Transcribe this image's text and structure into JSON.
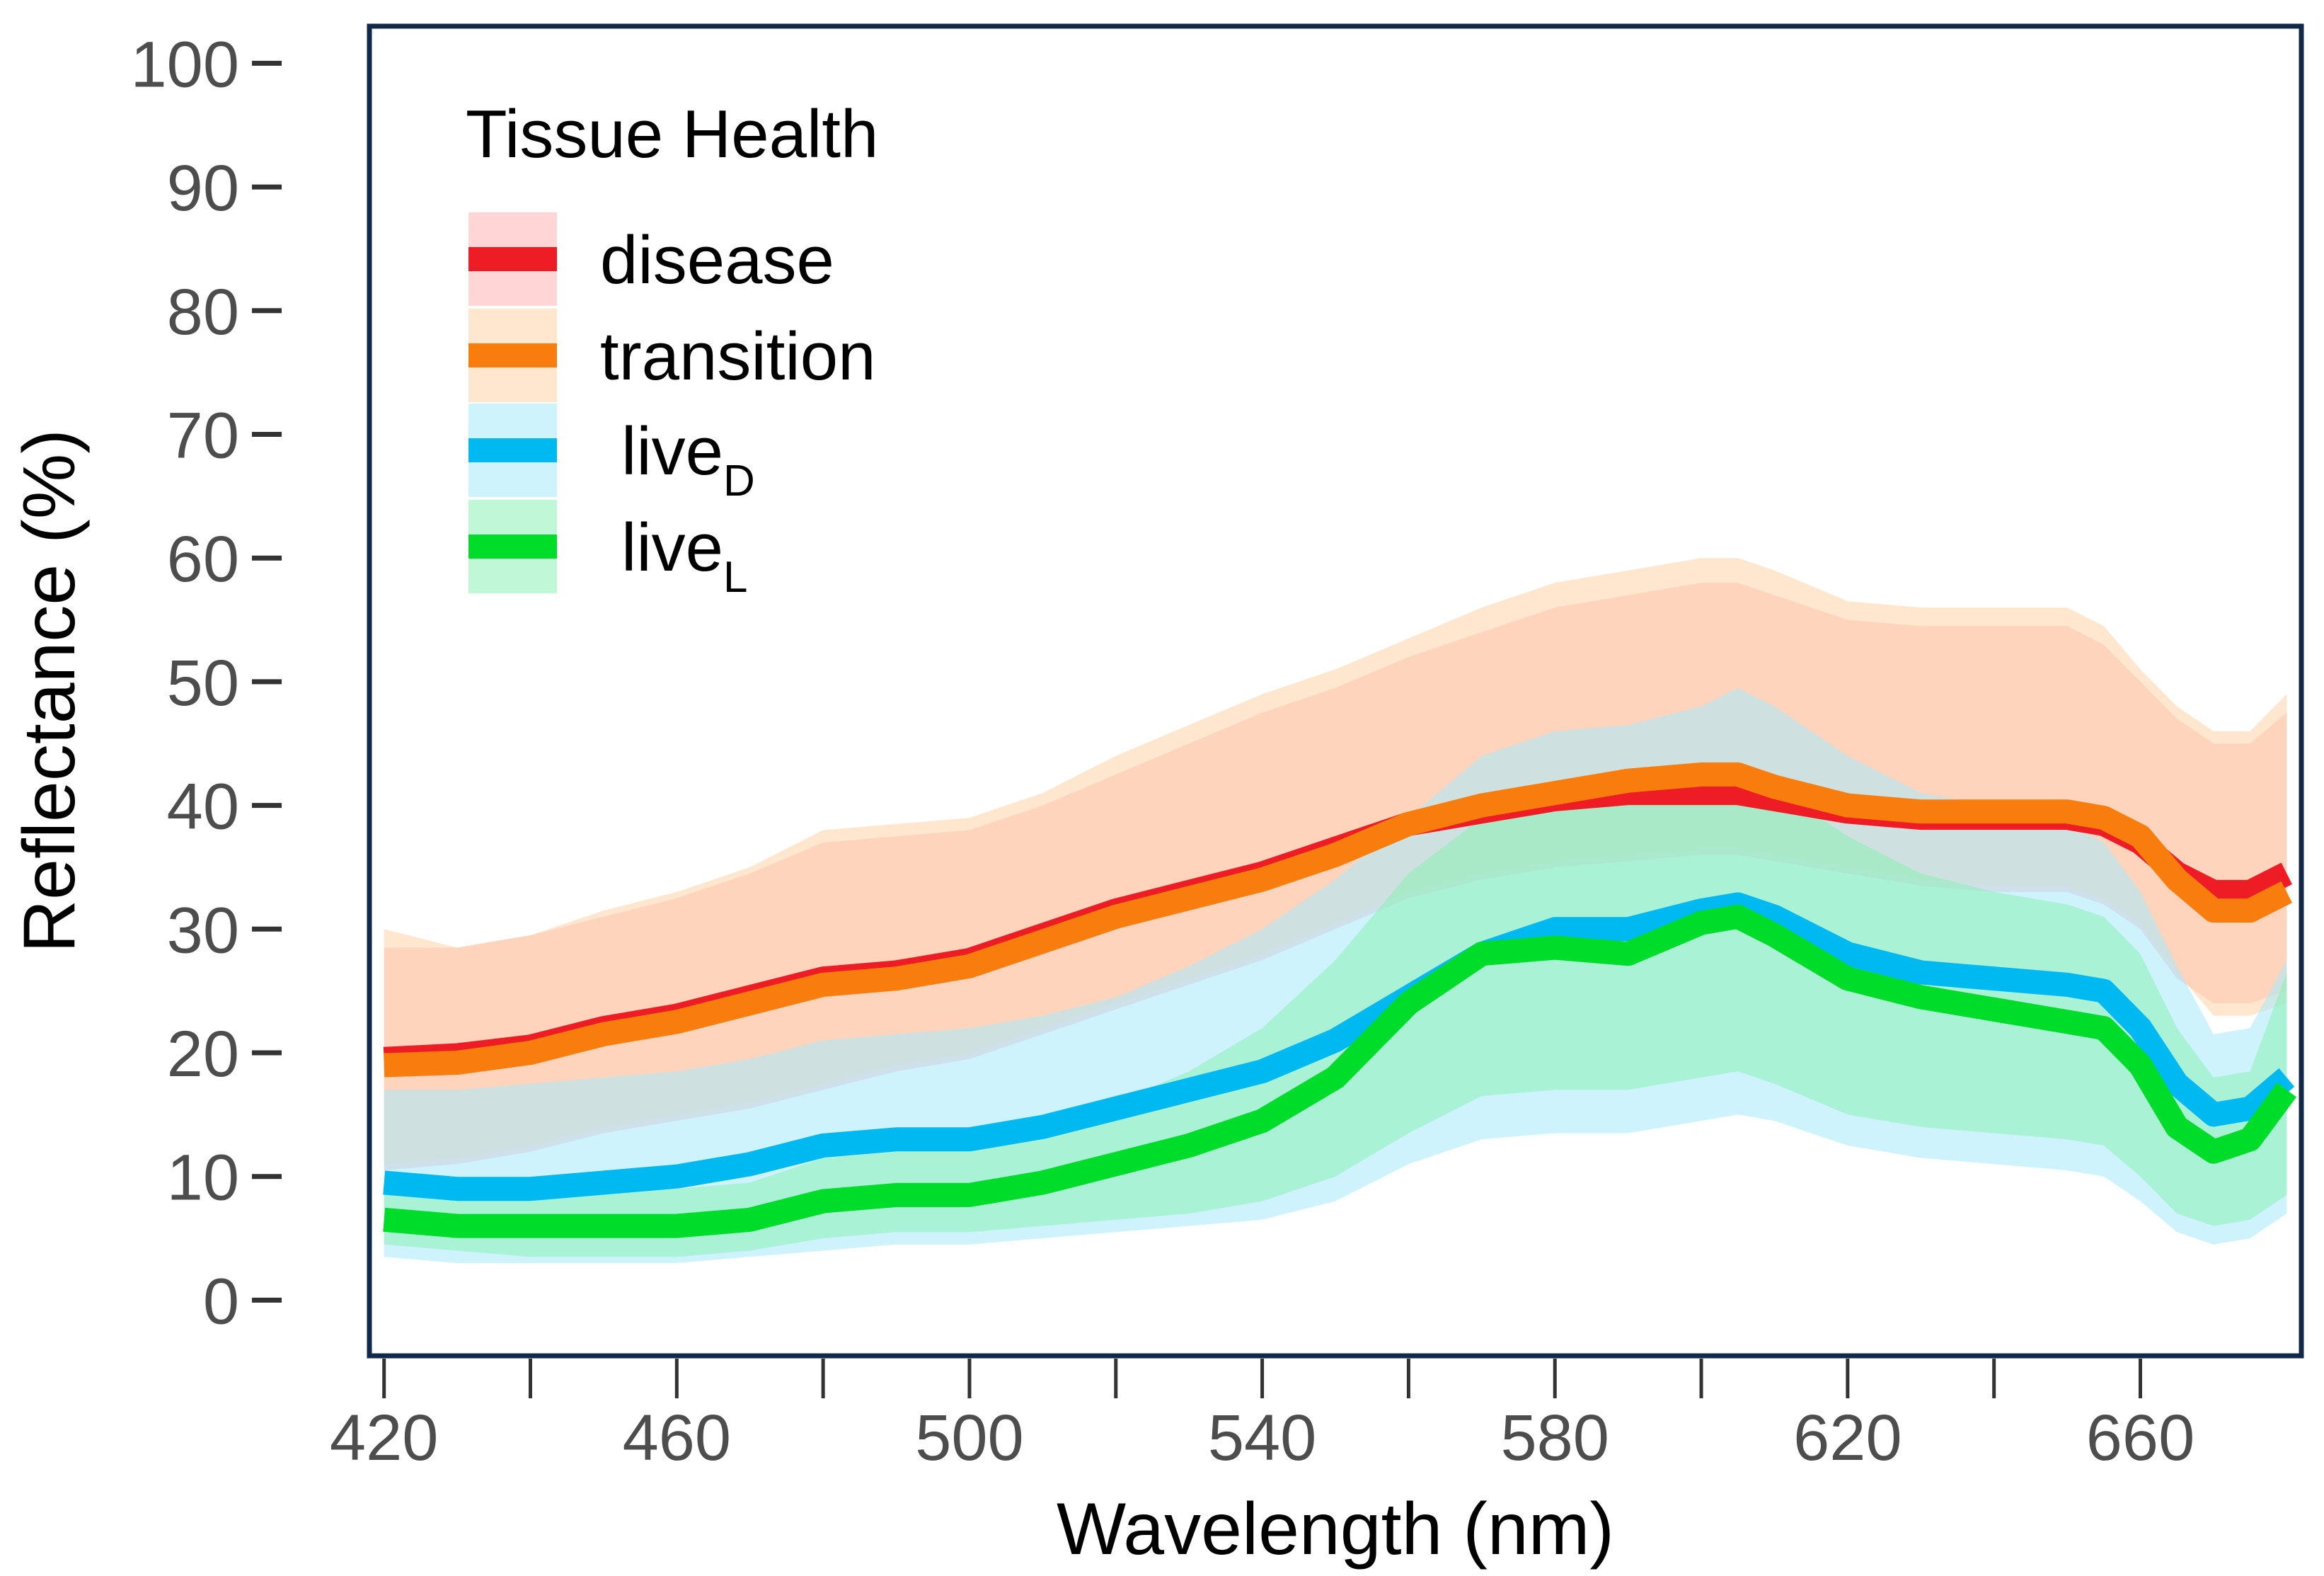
{
  "chart_data": {
    "type": "line",
    "xlabel": "Wavelength (nm)",
    "ylabel": "Reflectance (%)",
    "xlim": [
      418,
      682
    ],
    "ylim": [
      -4.5,
      103
    ],
    "x_ticks": [
      420,
      460,
      500,
      540,
      580,
      620,
      660
    ],
    "x_minor_ticks": [
      440,
      480,
      520,
      560,
      600,
      640
    ],
    "y_ticks": [
      0,
      10,
      20,
      30,
      40,
      50,
      60,
      70,
      80,
      90,
      100
    ],
    "grid": false,
    "legend": {
      "title": "Tissue Health",
      "position": "top-left",
      "entries": [
        {
          "key": "disease",
          "label": "disease",
          "sub": ""
        },
        {
          "key": "transition",
          "label": "transition",
          "sub": ""
        },
        {
          "key": "liveD",
          "label": "live",
          "sub": "D"
        },
        {
          "key": "liveL",
          "label": "live",
          "sub": "L"
        }
      ]
    },
    "series": [
      {
        "name": "disease",
        "color": "#ee1c25",
        "band_color": "#ffb3b3",
        "x": [
          420,
          430,
          440,
          450,
          460,
          470,
          480,
          490,
          500,
          510,
          520,
          530,
          540,
          550,
          560,
          570,
          580,
          590,
          600,
          605,
          610,
          620,
          630,
          640,
          650,
          655,
          660,
          665,
          670,
          675,
          680
        ],
        "y": [
          19.5,
          19.8,
          20.5,
          22,
          23,
          24.5,
          26,
          26.5,
          27.5,
          29.5,
          31.5,
          33,
          34.5,
          36.5,
          38.5,
          39.5,
          40.5,
          41,
          41,
          41,
          40.5,
          39.5,
          39,
          39,
          39,
          38.5,
          37,
          34.5,
          33,
          33,
          34.5
        ],
        "lower": [
          10.5,
          11,
          12,
          13.5,
          14.5,
          15.5,
          17,
          18.5,
          19.5,
          21.5,
          23.5,
          25.5,
          27.5,
          30,
          32.5,
          34,
          35,
          35.5,
          36,
          36,
          35.5,
          34.5,
          33.5,
          33,
          33,
          32,
          30,
          26,
          24,
          24,
          25
        ],
        "upper": [
          28.5,
          28.5,
          29.5,
          31,
          32.5,
          34.5,
          37,
          37.5,
          38,
          40,
          42.5,
          45,
          47.5,
          49.5,
          52,
          54,
          56,
          57,
          58,
          58,
          57,
          55,
          54.5,
          54.5,
          54.5,
          53,
          50,
          47,
          45,
          45,
          47.5
        ]
      },
      {
        "name": "transition",
        "color": "#f97d0c",
        "band_color": "#ffd3a8",
        "x": [
          420,
          430,
          440,
          450,
          460,
          470,
          480,
          490,
          500,
          510,
          520,
          530,
          540,
          550,
          560,
          570,
          580,
          590,
          600,
          605,
          610,
          620,
          630,
          640,
          650,
          655,
          660,
          665,
          670,
          675,
          680
        ],
        "y": [
          19,
          19.2,
          20,
          21.5,
          22.5,
          24,
          25.5,
          26,
          27,
          29,
          31,
          32.5,
          34,
          36,
          38.5,
          40,
          41,
          42,
          42.5,
          42.5,
          41.5,
          40,
          39.5,
          39.5,
          39.5,
          39,
          37.5,
          34,
          31.5,
          31.5,
          33
        ],
        "lower": [
          11,
          11.5,
          12.5,
          14,
          15,
          16,
          17.5,
          19,
          20,
          22,
          24,
          26,
          28,
          30.5,
          33,
          34.5,
          35.5,
          36,
          36.5,
          36.5,
          36,
          35,
          34,
          33.5,
          33.5,
          32.5,
          30.5,
          26.5,
          23,
          23,
          24
        ],
        "upper": [
          30,
          28.5,
          29.5,
          31.5,
          33,
          35,
          38,
          38.5,
          39,
          41,
          44,
          46.5,
          49,
          51,
          53.5,
          56,
          58,
          59,
          60,
          60,
          59,
          56.5,
          56,
          56,
          56,
          54.5,
          51,
          48,
          46,
          46,
          49
        ]
      },
      {
        "name": "liveD",
        "color": "#00b9f1",
        "band_color": "#a6e9fb",
        "x": [
          420,
          430,
          440,
          450,
          460,
          470,
          480,
          490,
          500,
          510,
          520,
          530,
          540,
          550,
          560,
          570,
          580,
          590,
          600,
          605,
          610,
          620,
          630,
          640,
          650,
          655,
          660,
          665,
          670,
          675,
          680
        ],
        "y": [
          9.5,
          9,
          9,
          9.5,
          10,
          11,
          12.5,
          13,
          13,
          14,
          15.5,
          17,
          18.5,
          21,
          24.5,
          28,
          30,
          30,
          31.5,
          32,
          31,
          28,
          26.5,
          26,
          25.5,
          25,
          22,
          17.5,
          15,
          15.5,
          18
        ],
        "lower": [
          3.5,
          3,
          3,
          3,
          3,
          3.5,
          4,
          4.5,
          4.5,
          5,
          5.5,
          6,
          6.5,
          8,
          11,
          13,
          13.5,
          13.5,
          14.5,
          15,
          14.5,
          12.5,
          11.5,
          11,
          10.5,
          10,
          8,
          5.5,
          4.5,
          5,
          7
        ],
        "upper": [
          17,
          17,
          17.5,
          18,
          18.5,
          19.5,
          21,
          21.5,
          22,
          23,
          24.5,
          27,
          30,
          34,
          39,
          44,
          46,
          46.5,
          48,
          49.5,
          48,
          44,
          41,
          40,
          38.5,
          37,
          33,
          27,
          21.5,
          22,
          27.5
        ]
      },
      {
        "name": "liveL",
        "color": "#00dc2a",
        "band_color": "#8cf0b4",
        "x": [
          420,
          430,
          440,
          450,
          460,
          470,
          480,
          490,
          500,
          510,
          520,
          530,
          540,
          550,
          560,
          570,
          580,
          590,
          600,
          605,
          610,
          620,
          630,
          640,
          650,
          655,
          660,
          665,
          670,
          675,
          680
        ],
        "y": [
          6.5,
          6,
          6,
          6,
          6,
          6.5,
          8,
          8.5,
          8.5,
          9.5,
          11,
          12.5,
          14.5,
          18,
          24,
          28,
          28.5,
          28,
          30.5,
          31,
          29.5,
          26,
          24.5,
          23.5,
          22.5,
          22,
          19,
          14,
          12,
          13,
          17
        ],
        "lower": [
          4.5,
          4,
          3.5,
          3.5,
          3.5,
          4,
          5,
          5.5,
          5.5,
          6,
          6.5,
          7,
          8,
          10,
          13.5,
          16.5,
          17,
          17,
          18,
          18.5,
          17.5,
          15,
          14,
          13.5,
          13,
          12.5,
          10,
          7,
          6,
          6.5,
          8.5
        ],
        "upper": [
          8.5,
          8.5,
          8.5,
          9,
          9,
          9.5,
          11.5,
          12,
          12.5,
          14,
          16,
          18.5,
          22,
          27.5,
          34.5,
          39,
          40,
          40,
          42,
          43,
          41.5,
          37.5,
          34.5,
          33,
          32,
          31,
          28,
          22,
          18,
          18.5,
          26.5
        ]
      }
    ]
  }
}
